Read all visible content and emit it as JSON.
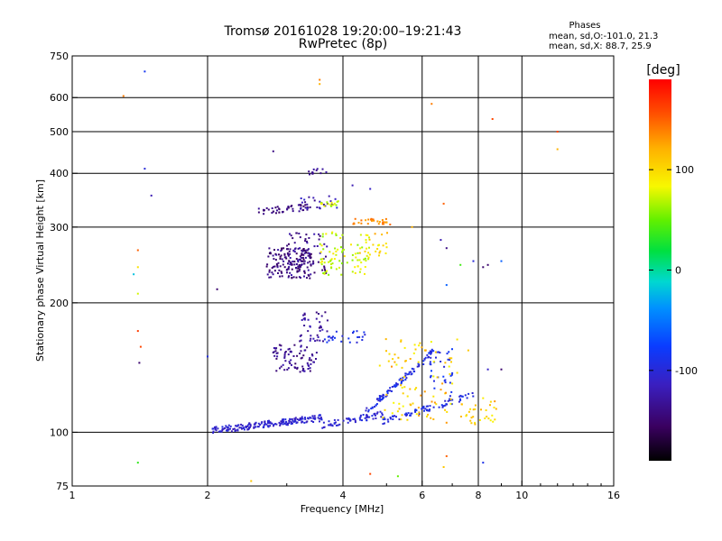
{
  "chart_data": {
    "type": "scatter",
    "title": "Tromsø 20161028 19:20:00–19:21:43",
    "subtitle": "RwPretec (8p)",
    "stats": {
      "header": "Phases",
      "line1": "mean, sd,O:-101.0, 21.3",
      "line2": "mean, sd,X:  88.7, 25.9"
    },
    "xlabel": "Frequency [MHz]",
    "ylabel": "Stationary phase Virtual Height [km]",
    "xscale": "log",
    "yscale": "log",
    "xlim": [
      1,
      16
    ],
    "ylim": [
      75,
      750
    ],
    "xticks": [
      {
        "value": 1,
        "label": "1"
      },
      {
        "value": 2,
        "label": "2"
      },
      {
        "value": 4,
        "label": "4"
      },
      {
        "value": 6,
        "label": "6"
      },
      {
        "value": 8,
        "label": "8"
      },
      {
        "value": 10,
        "label": "10"
      },
      {
        "value": 16,
        "label": "16"
      }
    ],
    "yticks": [
      {
        "value": 75,
        "label": "75"
      },
      {
        "value": 100,
        "label": "100"
      },
      {
        "value": 200,
        "label": "200"
      },
      {
        "value": 300,
        "label": "300"
      },
      {
        "value": 400,
        "label": "400"
      },
      {
        "value": 500,
        "label": "500"
      },
      {
        "value": 600,
        "label": "600"
      },
      {
        "value": 750,
        "label": "750"
      }
    ],
    "grid": true,
    "colorbar": {
      "label": "[deg]",
      "min": -190,
      "max": 190,
      "ticks": [
        {
          "value": 100,
          "label": "100"
        },
        {
          "value": 0,
          "label": "0"
        },
        {
          "value": -100,
          "label": "-100"
        }
      ]
    },
    "clusters": [
      {
        "f": [
          2.05,
          3.6
        ],
        "h": [
          101,
          108
        ],
        "phase": [
          -120,
          -95
        ],
        "n": 190,
        "shape": "trend"
      },
      {
        "f": [
          3.6,
          4.9
        ],
        "h": [
          104,
          110
        ],
        "phase": [
          -115,
          -90
        ],
        "n": 60,
        "shape": "trend"
      },
      {
        "f": [
          4.9,
          7.8
        ],
        "h": [
          106,
          122
        ],
        "phase": [
          -110,
          -85
        ],
        "n": 75,
        "shape": "trend"
      },
      {
        "f": [
          4.5,
          6.3
        ],
        "h": [
          112,
          152
        ],
        "phase": [
          -110,
          -80
        ],
        "n": 90,
        "shape": "trend"
      },
      {
        "f": [
          6.2,
          7.0
        ],
        "h": [
          120,
          158
        ],
        "phase": [
          -105,
          -75
        ],
        "n": 35,
        "shape": "box"
      },
      {
        "f": [
          4.8,
          7.2
        ],
        "h": [
          105,
          165
        ],
        "phase": [
          80,
          135
        ],
        "n": 90,
        "shape": "box"
      },
      {
        "f": [
          7.3,
          8.8
        ],
        "h": [
          104,
          118
        ],
        "phase": [
          85,
          125
        ],
        "n": 30,
        "shape": "box"
      },
      {
        "f": [
          2.7,
          3.4
        ],
        "h": [
          228,
          268
        ],
        "phase": [
          -160,
          -125
        ],
        "n": 140,
        "shape": "box"
      },
      {
        "f": [
          3.0,
          3.7
        ],
        "h": [
          232,
          292
        ],
        "phase": [
          -155,
          -120
        ],
        "n": 70,
        "shape": "box"
      },
      {
        "f": [
          2.6,
          3.4
        ],
        "h": [
          326,
          334
        ],
        "phase": [
          -155,
          -130
        ],
        "n": 45,
        "shape": "trend"
      },
      {
        "f": [
          3.2,
          3.9
        ],
        "h": [
          330,
          355
        ],
        "phase": [
          -140,
          -100
        ],
        "n": 25,
        "shape": "box"
      },
      {
        "f": [
          3.55,
          4.6
        ],
        "h": [
          232,
          292
        ],
        "phase": [
          55,
          95
        ],
        "n": 85,
        "shape": "box"
      },
      {
        "f": [
          3.55,
          4.0
        ],
        "h": [
          335,
          345
        ],
        "phase": [
          55,
          90
        ],
        "n": 15,
        "shape": "box"
      },
      {
        "f": [
          4.2,
          5.1
        ],
        "h": [
          304,
          314
        ],
        "phase": [
          120,
          150
        ],
        "n": 30,
        "shape": "box"
      },
      {
        "f": [
          4.3,
          5.1
        ],
        "h": [
          254,
          292
        ],
        "phase": [
          80,
          125
        ],
        "n": 20,
        "shape": "box"
      },
      {
        "f": [
          2.8,
          3.5
        ],
        "h": [
          138,
          160
        ],
        "phase": [
          -150,
          -120
        ],
        "n": 80,
        "shape": "box"
      },
      {
        "f": [
          3.2,
          3.7
        ],
        "h": [
          162,
          192
        ],
        "phase": [
          -145,
          -115
        ],
        "n": 40,
        "shape": "box"
      },
      {
        "f": [
          3.6,
          4.5
        ],
        "h": [
          160,
          172
        ],
        "phase": [
          -105,
          -80
        ],
        "n": 25,
        "shape": "box"
      },
      {
        "f": [
          3.3,
          3.7
        ],
        "h": [
          395,
          410
        ],
        "phase": [
          -150,
          -125
        ],
        "n": 12,
        "shape": "box"
      }
    ],
    "points": [
      {
        "f": 1.45,
        "h": 690,
        "phase": -85
      },
      {
        "f": 1.3,
        "h": 605,
        "phase": 140
      },
      {
        "f": 1.45,
        "h": 410,
        "phase": -100
      },
      {
        "f": 1.5,
        "h": 355,
        "phase": -120
      },
      {
        "f": 1.4,
        "h": 265,
        "phase": 150
      },
      {
        "f": 1.4,
        "h": 242,
        "phase": 95
      },
      {
        "f": 1.4,
        "h": 210,
        "phase": 75
      },
      {
        "f": 1.37,
        "h": 233,
        "phase": -20
      },
      {
        "f": 1.4,
        "h": 172,
        "phase": 165
      },
      {
        "f": 1.42,
        "h": 158,
        "phase": 160
      },
      {
        "f": 1.41,
        "h": 145,
        "phase": -150
      },
      {
        "f": 1.4,
        "h": 85,
        "phase": 35
      },
      {
        "f": 2.0,
        "h": 150,
        "phase": -95
      },
      {
        "f": 2.1,
        "h": 215,
        "phase": -150
      },
      {
        "f": 2.3,
        "h": 75,
        "phase": 120
      },
      {
        "f": 2.5,
        "h": 77,
        "phase": 110
      },
      {
        "f": 2.8,
        "h": 450,
        "phase": -140
      },
      {
        "f": 3.55,
        "h": 660,
        "phase": 140
      },
      {
        "f": 3.55,
        "h": 645,
        "phase": 120
      },
      {
        "f": 6.3,
        "h": 580,
        "phase": 140
      },
      {
        "f": 8.6,
        "h": 535,
        "phase": 160
      },
      {
        "f": 12.0,
        "h": 500,
        "phase": 160
      },
      {
        "f": 12.0,
        "h": 455,
        "phase": 120
      },
      {
        "f": 4.2,
        "h": 375,
        "phase": -120
      },
      {
        "f": 4.6,
        "h": 368,
        "phase": -110
      },
      {
        "f": 5.7,
        "h": 300,
        "phase": 120
      },
      {
        "f": 6.6,
        "h": 280,
        "phase": -120
      },
      {
        "f": 6.8,
        "h": 268,
        "phase": -140
      },
      {
        "f": 7.8,
        "h": 250,
        "phase": -100
      },
      {
        "f": 8.2,
        "h": 242,
        "phase": -150
      },
      {
        "f": 8.4,
        "h": 245,
        "phase": -150
      },
      {
        "f": 9.0,
        "h": 250,
        "phase": -60
      },
      {
        "f": 6.7,
        "h": 340,
        "phase": 150
      },
      {
        "f": 6.8,
        "h": 220,
        "phase": -60
      },
      {
        "f": 7.3,
        "h": 245,
        "phase": 40
      },
      {
        "f": 8.4,
        "h": 140,
        "phase": -110
      },
      {
        "f": 9.0,
        "h": 140,
        "phase": -150
      },
      {
        "f": 8.2,
        "h": 85,
        "phase": -90
      },
      {
        "f": 6.8,
        "h": 88,
        "phase": 150
      },
      {
        "f": 6.7,
        "h": 83,
        "phase": 110
      },
      {
        "f": 5.3,
        "h": 79,
        "phase": 50
      },
      {
        "f": 4.6,
        "h": 80,
        "phase": 160
      },
      {
        "f": 7.6,
        "h": 155,
        "phase": 110
      },
      {
        "f": 8.7,
        "h": 118,
        "phase": 130
      },
      {
        "f": 8.2,
        "h": 120,
        "phase": 90
      }
    ]
  }
}
